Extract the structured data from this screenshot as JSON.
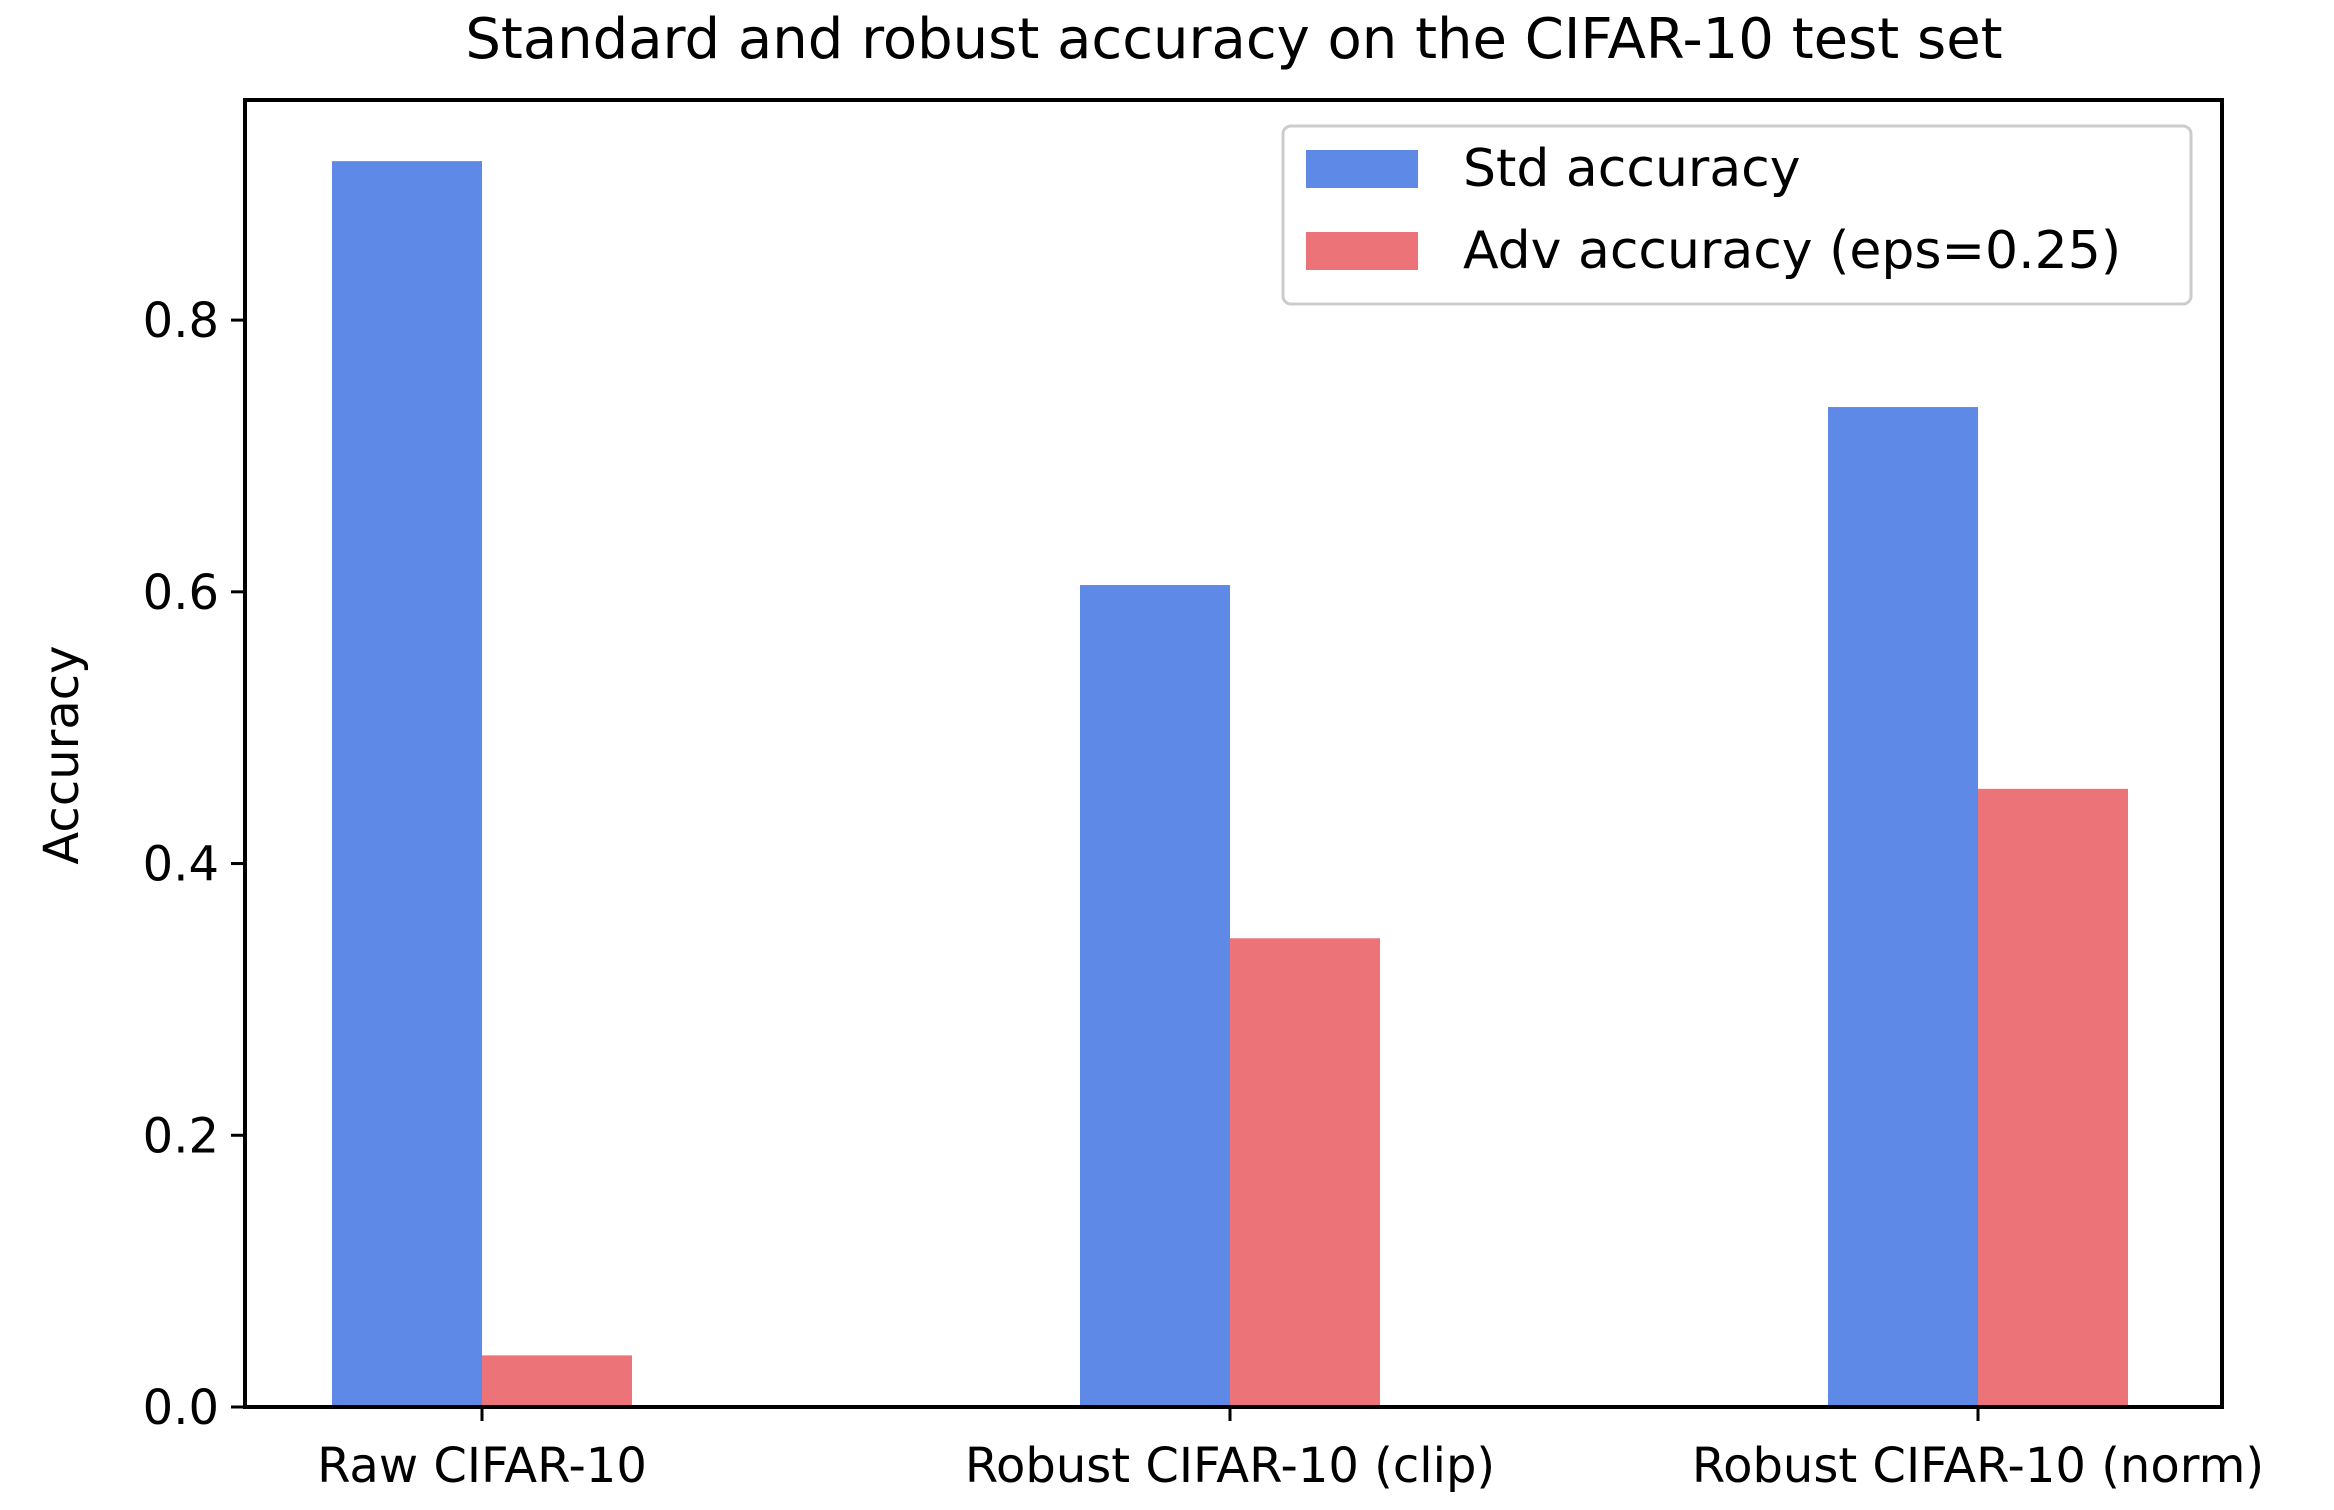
{
  "chart_data": {
    "type": "bar",
    "title": "Standard and robust accuracy on the CIFAR-10 test set",
    "xlabel": "",
    "ylabel": "Accuracy",
    "categories": [
      "Raw CIFAR-10",
      "Robust CIFAR-10 (clip)",
      "Robust CIFAR-10 (norm)"
    ],
    "series": [
      {
        "name": "Std accuracy",
        "values": [
          0.917,
          0.605,
          0.736
        ],
        "color": "#5f89e6"
      },
      {
        "name": "Adv accuracy (eps=0.25)",
        "values": [
          0.038,
          0.345,
          0.455
        ],
        "color": "#ec7377"
      }
    ],
    "ylim": [
      0,
      0.962
    ],
    "yticks": [
      0.0,
      0.2,
      0.4,
      0.6,
      0.8
    ],
    "ytick_labels": [
      "0.0",
      "0.2",
      "0.4",
      "0.6",
      "0.8"
    ],
    "grid": false,
    "legend_position": "top-right"
  }
}
